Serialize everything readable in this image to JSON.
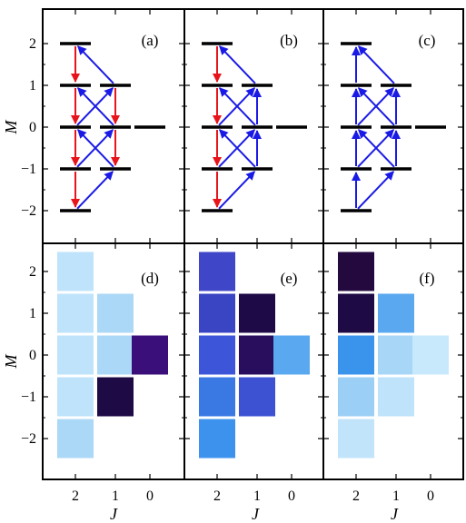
{
  "figure": {
    "y_axis_label": "M",
    "x_axis_label": "J",
    "y_tick_labels": [
      "2",
      "1",
      "0",
      "−1",
      "−2"
    ],
    "x_tick_labels": [
      "2",
      "1",
      "0"
    ]
  },
  "colors": {
    "decay_arrow": "#e8141c",
    "excite_arrow": "#1a1ae6",
    "level_line": "#000000"
  },
  "levels": [
    {
      "J": 2,
      "M": 2
    },
    {
      "J": 2,
      "M": 1
    },
    {
      "J": 2,
      "M": 0
    },
    {
      "J": 2,
      "M": -1
    },
    {
      "J": 2,
      "M": -2
    },
    {
      "J": 1,
      "M": 1
    },
    {
      "J": 1,
      "M": 0
    },
    {
      "J": 1,
      "M": -1
    },
    {
      "J": 0,
      "M": 0
    }
  ],
  "panels": [
    {
      "label": "(a)",
      "arrows": [
        {
          "from": [
            2,
            2
          ],
          "to": [
            2,
            1
          ],
          "color": "red"
        },
        {
          "from": [
            2,
            1
          ],
          "to": [
            2,
            0
          ],
          "color": "red"
        },
        {
          "from": [
            2,
            0
          ],
          "to": [
            2,
            -1
          ],
          "color": "red"
        },
        {
          "from": [
            2,
            -1
          ],
          "to": [
            2,
            -2
          ],
          "color": "red"
        },
        {
          "from": [
            1,
            1
          ],
          "to": [
            1,
            0
          ],
          "color": "red"
        },
        {
          "from": [
            1,
            0
          ],
          "to": [
            1,
            -1
          ],
          "color": "red"
        },
        {
          "from": [
            1,
            1
          ],
          "to": [
            2,
            2
          ],
          "color": "blue"
        },
        {
          "from": [
            1,
            0
          ],
          "to": [
            2,
            1
          ],
          "color": "blue"
        },
        {
          "from": [
            2,
            0
          ],
          "to": [
            1,
            1
          ],
          "color": "blue"
        },
        {
          "from": [
            1,
            -1
          ],
          "to": [
            2,
            0
          ],
          "color": "blue"
        },
        {
          "from": [
            2,
            -1
          ],
          "to": [
            1,
            0
          ],
          "color": "blue"
        },
        {
          "from": [
            2,
            -2
          ],
          "to": [
            1,
            -1
          ],
          "color": "blue"
        }
      ]
    },
    {
      "label": "(b)",
      "arrows": [
        {
          "from": [
            2,
            2
          ],
          "to": [
            2,
            1
          ],
          "color": "red"
        },
        {
          "from": [
            2,
            1
          ],
          "to": [
            2,
            0
          ],
          "color": "red"
        },
        {
          "from": [
            2,
            0
          ],
          "to": [
            2,
            -1
          ],
          "color": "red"
        },
        {
          "from": [
            2,
            -1
          ],
          "to": [
            2,
            -2
          ],
          "color": "red"
        },
        {
          "from": [
            1,
            0
          ],
          "to": [
            1,
            1
          ],
          "color": "blue"
        },
        {
          "from": [
            1,
            -1
          ],
          "to": [
            1,
            0
          ],
          "color": "blue"
        },
        {
          "from": [
            1,
            1
          ],
          "to": [
            2,
            2
          ],
          "color": "blue"
        },
        {
          "from": [
            1,
            0
          ],
          "to": [
            2,
            1
          ],
          "color": "blue"
        },
        {
          "from": [
            2,
            0
          ],
          "to": [
            1,
            1
          ],
          "color": "blue"
        },
        {
          "from": [
            1,
            -1
          ],
          "to": [
            2,
            0
          ],
          "color": "blue"
        },
        {
          "from": [
            2,
            -1
          ],
          "to": [
            1,
            0
          ],
          "color": "blue"
        },
        {
          "from": [
            2,
            -2
          ],
          "to": [
            1,
            -1
          ],
          "color": "blue"
        }
      ]
    },
    {
      "label": "(c)",
      "arrows": [
        {
          "from": [
            2,
            1
          ],
          "to": [
            2,
            2
          ],
          "color": "blue"
        },
        {
          "from": [
            2,
            0
          ],
          "to": [
            2,
            1
          ],
          "color": "blue"
        },
        {
          "from": [
            2,
            -1
          ],
          "to": [
            2,
            0
          ],
          "color": "blue"
        },
        {
          "from": [
            2,
            -2
          ],
          "to": [
            2,
            -1
          ],
          "color": "blue"
        },
        {
          "from": [
            1,
            0
          ],
          "to": [
            1,
            1
          ],
          "color": "blue"
        },
        {
          "from": [
            1,
            -1
          ],
          "to": [
            1,
            0
          ],
          "color": "blue"
        },
        {
          "from": [
            1,
            1
          ],
          "to": [
            2,
            2
          ],
          "color": "blue"
        },
        {
          "from": [
            1,
            0
          ],
          "to": [
            2,
            1
          ],
          "color": "blue"
        },
        {
          "from": [
            2,
            0
          ],
          "to": [
            1,
            1
          ],
          "color": "blue"
        },
        {
          "from": [
            1,
            -1
          ],
          "to": [
            2,
            0
          ],
          "color": "blue"
        },
        {
          "from": [
            2,
            -1
          ],
          "to": [
            1,
            0
          ],
          "color": "blue"
        },
        {
          "from": [
            2,
            -2
          ],
          "to": [
            1,
            -1
          ],
          "color": "blue"
        }
      ]
    },
    {
      "label": "(d)",
      "cells": [
        {
          "J": 2,
          "M": 2,
          "color": "#bfe3fb"
        },
        {
          "J": 2,
          "M": 1,
          "color": "#bfe3fb"
        },
        {
          "J": 2,
          "M": 0,
          "color": "#bfe3fb"
        },
        {
          "J": 2,
          "M": -1,
          "color": "#bfe3fb"
        },
        {
          "J": 2,
          "M": -2,
          "color": "#acd8f7"
        },
        {
          "J": 1,
          "M": 1,
          "color": "#acd8f7"
        },
        {
          "J": 1,
          "M": 0,
          "color": "#acd8f7"
        },
        {
          "J": 1,
          "M": -1,
          "color": "#1e0a45"
        },
        {
          "J": 0,
          "M": 0,
          "color": "#3b0f7a"
        }
      ]
    },
    {
      "label": "(e)",
      "cells": [
        {
          "J": 2,
          "M": 2,
          "color": "#3f46c8"
        },
        {
          "J": 2,
          "M": 1,
          "color": "#3a45c4"
        },
        {
          "J": 2,
          "M": 0,
          "color": "#3d55d8"
        },
        {
          "J": 2,
          "M": -1,
          "color": "#3a78e4"
        },
        {
          "J": 2,
          "M": -2,
          "color": "#3c92ec"
        },
        {
          "J": 1,
          "M": 1,
          "color": "#1f0a48"
        },
        {
          "J": 1,
          "M": 0,
          "color": "#2a0e5e"
        },
        {
          "J": 1,
          "M": -1,
          "color": "#3d52d2"
        },
        {
          "J": 0,
          "M": 0,
          "color": "#5aa8f0"
        }
      ]
    },
    {
      "label": "(f)",
      "cells": [
        {
          "J": 2,
          "M": 2,
          "color": "#24093f"
        },
        {
          "J": 2,
          "M": 1,
          "color": "#1e0a45"
        },
        {
          "J": 2,
          "M": 0,
          "color": "#3b94ec"
        },
        {
          "J": 2,
          "M": -1,
          "color": "#9ccff5"
        },
        {
          "J": 2,
          "M": -2,
          "color": "#c2e4fb"
        },
        {
          "J": 1,
          "M": 1,
          "color": "#5aa8f0"
        },
        {
          "J": 1,
          "M": 0,
          "color": "#a8d6f7"
        },
        {
          "J": 1,
          "M": -1,
          "color": "#bfe3fb"
        },
        {
          "J": 0,
          "M": 0,
          "color": "#c8e8fc"
        }
      ]
    }
  ]
}
